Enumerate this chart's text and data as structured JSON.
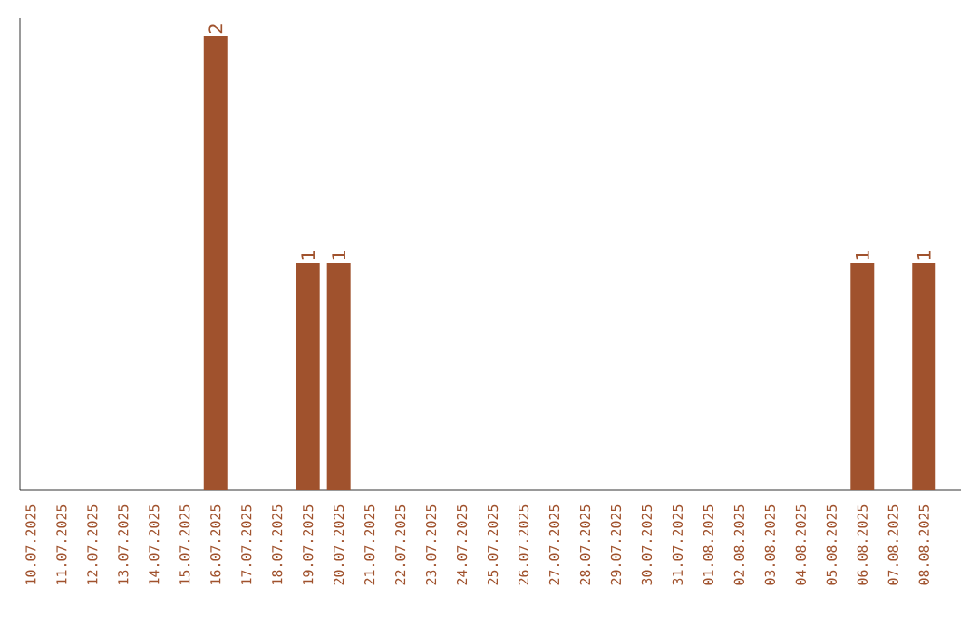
{
  "chart_data": {
    "type": "bar",
    "color": "#a0522d",
    "categories": [
      "10.07.2025",
      "11.07.2025",
      "12.07.2025",
      "13.07.2025",
      "14.07.2025",
      "15.07.2025",
      "16.07.2025",
      "17.07.2025",
      "18.07.2025",
      "19.07.2025",
      "20.07.2025",
      "21.07.2025",
      "22.07.2025",
      "23.07.2025",
      "24.07.2025",
      "25.07.2025",
      "26.07.2025",
      "27.07.2025",
      "28.07.2025",
      "29.07.2025",
      "30.07.2025",
      "31.07.2025",
      "01.08.2025",
      "02.08.2025",
      "03.08.2025",
      "04.08.2025",
      "05.08.2025",
      "06.08.2025",
      "07.08.2025",
      "08.08.2025"
    ],
    "values": [
      0,
      0,
      0,
      0,
      0,
      0,
      2,
      0,
      0,
      1,
      1,
      0,
      0,
      0,
      0,
      0,
      0,
      0,
      0,
      0,
      0,
      0,
      0,
      0,
      0,
      0,
      0,
      1,
      0,
      1
    ],
    "value_labels": [
      null,
      null,
      null,
      null,
      null,
      null,
      "2",
      null,
      null,
      "1",
      "1",
      null,
      null,
      null,
      null,
      null,
      null,
      null,
      null,
      null,
      null,
      null,
      null,
      null,
      null,
      null,
      null,
      "1",
      null,
      "1"
    ]
  }
}
